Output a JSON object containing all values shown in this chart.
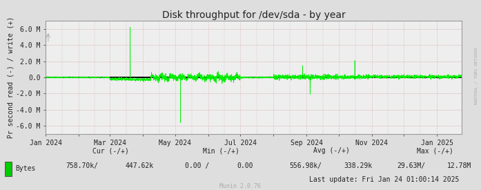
{
  "title": "Disk throughput for /dev/sda - by year",
  "ylabel": "Pr second read (-) / write (+)",
  "background_color": "#dedede",
  "plot_bg_color": "#eeeeee",
  "line_color": "#00ee00",
  "zero_line_color": "#000000",
  "border_color": "#999999",
  "ylim": [
    -7000000,
    7000000
  ],
  "yticks": [
    -6000000,
    -4000000,
    -2000000,
    0,
    2000000,
    4000000,
    6000000
  ],
  "ytick_labels": [
    "-6.0 M",
    "-4.0 M",
    "-2.0 M",
    "0.0",
    "2.0 M",
    "4.0 M",
    "6.0 M"
  ],
  "xstart": 1704067200,
  "xend": 1737676800,
  "xticks": [
    1704067200,
    1706745600,
    1709251200,
    1711929600,
    1714521600,
    1717200000,
    1719792000,
    1722470400,
    1725148800,
    1727740800,
    1730419200,
    1733011200,
    1735689600
  ],
  "xtick_labels": [
    "Jan 2024",
    "",
    "Mar 2024",
    "",
    "May 2024",
    "",
    "Jul 2024",
    "",
    "Sep 2024",
    "",
    "Nov 2024",
    "",
    "Jan 2025"
  ],
  "legend_label": "Bytes",
  "legend_color": "#00cc00",
  "rrdtool_label": "RRDTOOL / TOBI OETIKER",
  "munin_label": "Munin 2.0.76",
  "last_update": "Last update: Fri Jan 24 01:00:14 2025",
  "cur_header": "Cur (-/+)",
  "min_header": "Min (-/+)",
  "avg_header": "Avg (-/+)",
  "max_header": "Max (-/+)",
  "cur_val1": "758.70k/",
  "cur_val2": "447.62k",
  "min_val1": "0.00 /",
  "min_val2": "0.00",
  "avg_val1": "556.98k/",
  "avg_val2": "338.29k",
  "max_val1": "29.63M/",
  "max_val2": "12.78M"
}
